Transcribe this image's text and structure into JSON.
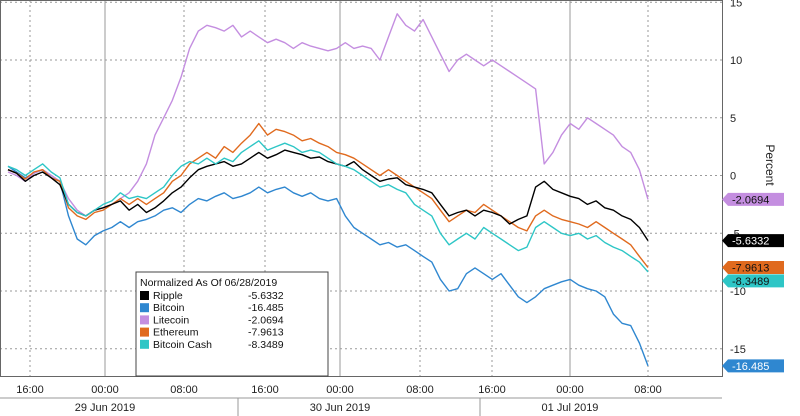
{
  "chart_data": {
    "type": "line",
    "ylabel": "Percent",
    "ylim": [
      -17,
      15.5
    ],
    "y_ticks": [
      15,
      10,
      5,
      0,
      -5,
      -10,
      -15
    ],
    "x_tick_labels": [
      "16:00",
      "00:00",
      "08:00",
      "16:00",
      "00:00",
      "08:00",
      "16:00",
      "00:00",
      "08:00"
    ],
    "date_labels": [
      "29 Jun 2019",
      "30 Jun 2019",
      "01 Jul 2019"
    ],
    "legend": {
      "title": "Normalized As Of 06/28/2019",
      "placement": "bottom-left"
    },
    "grid": true,
    "series": [
      {
        "name": "Ripple",
        "value_label": "-5.6332",
        "color": "#000000",
        "text_color": "#ffffff",
        "values": [
          0.5,
          0.2,
          -0.5,
          0.0,
          0.3,
          -0.2,
          -0.8,
          -2.5,
          -3.2,
          -3.5,
          -3.0,
          -2.8,
          -2.5,
          -2.2,
          -3.0,
          -2.5,
          -3.2,
          -2.8,
          -2.2,
          -1.5,
          -1.0,
          -0.2,
          0.5,
          0.8,
          1.0,
          1.2,
          0.8,
          1.0,
          1.5,
          2.0,
          1.5,
          1.8,
          2.2,
          2.0,
          1.8,
          1.5,
          1.6,
          1.2,
          1.0,
          0.8,
          1.2,
          0.5,
          0.0,
          -0.5,
          -0.3,
          -0.2,
          -0.8,
          -1.0,
          -1.2,
          -1.5,
          -2.5,
          -3.5,
          -3.2,
          -3.0,
          -3.5,
          -3.0,
          -3.2,
          -3.5,
          -4.2,
          -3.8,
          -3.5,
          -1.0,
          -0.5,
          -1.2,
          -1.5,
          -1.8,
          -2.0,
          -2.5,
          -2.2,
          -2.8,
          -3.0,
          -3.5,
          -3.8,
          -4.5,
          -5.6332
        ]
      },
      {
        "name": "Bitcoin",
        "value_label": "-16.485",
        "color": "#2f87d0",
        "text_color": "#ffffff",
        "values": [
          0.8,
          0.3,
          -0.2,
          0.2,
          0.5,
          0.0,
          -0.5,
          -3.5,
          -5.5,
          -6.0,
          -5.2,
          -4.8,
          -4.5,
          -4.0,
          -4.5,
          -4.0,
          -3.8,
          -3.5,
          -3.0,
          -2.8,
          -3.2,
          -2.5,
          -2.0,
          -2.2,
          -1.8,
          -1.5,
          -2.0,
          -1.8,
          -1.5,
          -1.0,
          -1.5,
          -1.2,
          -1.0,
          -1.5,
          -1.8,
          -1.5,
          -2.0,
          -2.2,
          -2.0,
          -3.5,
          -4.5,
          -5.0,
          -5.5,
          -6.0,
          -5.8,
          -6.2,
          -6.0,
          -6.5,
          -7.0,
          -7.5,
          -9.0,
          -10.0,
          -9.8,
          -8.5,
          -8.0,
          -8.5,
          -9.0,
          -8.5,
          -9.5,
          -10.5,
          -11.0,
          -10.5,
          -9.8,
          -9.5,
          -9.2,
          -9.0,
          -9.5,
          -9.8,
          -10.0,
          -10.5,
          -12.0,
          -12.8,
          -13.0,
          -14.5,
          -16.485
        ]
      },
      {
        "name": "Litecoin",
        "value_label": "-2.0694",
        "color": "#c48ee0",
        "text_color": "#111111",
        "values": [
          0.3,
          0.0,
          -0.5,
          0.2,
          0.5,
          0.0,
          -0.5,
          -2.0,
          -3.0,
          -3.5,
          -3.0,
          -2.8,
          -2.5,
          -2.0,
          -1.5,
          -0.5,
          1.0,
          3.5,
          5.0,
          6.5,
          8.5,
          11.0,
          12.5,
          13.0,
          12.8,
          12.5,
          13.0,
          12.0,
          12.5,
          12.0,
          11.5,
          11.8,
          11.5,
          11.0,
          11.5,
          11.2,
          11.0,
          10.8,
          11.0,
          11.5,
          11.0,
          11.2,
          11.0,
          10.0,
          12.0,
          14.0,
          13.0,
          12.5,
          13.5,
          12.0,
          10.5,
          9.0,
          10.0,
          10.5,
          10.0,
          9.5,
          10.0,
          9.5,
          9.0,
          8.5,
          8.0,
          7.5,
          1.0,
          2.0,
          3.5,
          4.5,
          4.0,
          5.0,
          4.5,
          4.0,
          3.5,
          2.5,
          2.0,
          0.5,
          -2.0694
        ]
      },
      {
        "name": "Ethereum",
        "value_label": "-7.9613",
        "color": "#e06a1e",
        "text_color": "#111111",
        "values": [
          0.5,
          0.2,
          -0.3,
          0.3,
          0.5,
          -0.2,
          -0.5,
          -2.8,
          -3.5,
          -3.8,
          -3.2,
          -3.0,
          -2.5,
          -2.0,
          -2.5,
          -2.0,
          -2.5,
          -2.0,
          -1.5,
          -0.5,
          0.0,
          1.0,
          1.5,
          2.0,
          1.5,
          2.5,
          2.0,
          2.8,
          3.5,
          4.5,
          3.5,
          4.0,
          3.8,
          3.5,
          3.0,
          3.2,
          2.8,
          2.5,
          2.0,
          1.8,
          1.5,
          1.0,
          0.5,
          0.0,
          0.5,
          0.0,
          -0.5,
          -1.0,
          -1.5,
          -2.0,
          -3.0,
          -4.0,
          -3.5,
          -3.0,
          -3.2,
          -2.5,
          -3.0,
          -3.5,
          -4.0,
          -4.5,
          -4.8,
          -3.5,
          -3.0,
          -3.5,
          -3.8,
          -4.0,
          -4.2,
          -4.5,
          -4.0,
          -4.5,
          -5.0,
          -5.5,
          -6.0,
          -7.0,
          -7.9613
        ]
      },
      {
        "name": "Bitcoin Cash",
        "value_label": "-8.3489",
        "color": "#2ec6c6",
        "text_color": "#111111",
        "values": [
          0.8,
          0.5,
          0.0,
          0.5,
          1.0,
          0.3,
          -0.2,
          -2.5,
          -3.2,
          -3.5,
          -3.0,
          -2.5,
          -2.2,
          -1.5,
          -2.0,
          -1.8,
          -2.0,
          -1.5,
          -1.0,
          0.0,
          0.8,
          1.2,
          1.0,
          1.5,
          1.0,
          1.5,
          1.2,
          2.0,
          2.5,
          3.0,
          2.2,
          2.5,
          2.8,
          2.5,
          2.0,
          2.2,
          2.0,
          1.5,
          1.0,
          0.8,
          0.5,
          0.0,
          -0.5,
          -1.0,
          -0.8,
          -1.2,
          -1.5,
          -2.5,
          -3.0,
          -3.5,
          -5.0,
          -6.0,
          -5.5,
          -5.0,
          -5.5,
          -4.5,
          -5.0,
          -5.5,
          -6.0,
          -6.5,
          -6.2,
          -4.5,
          -4.0,
          -4.5,
          -5.0,
          -5.2,
          -5.0,
          -5.5,
          -5.2,
          -5.8,
          -6.2,
          -6.5,
          -7.0,
          -7.5,
          -8.3489
        ]
      }
    ]
  }
}
